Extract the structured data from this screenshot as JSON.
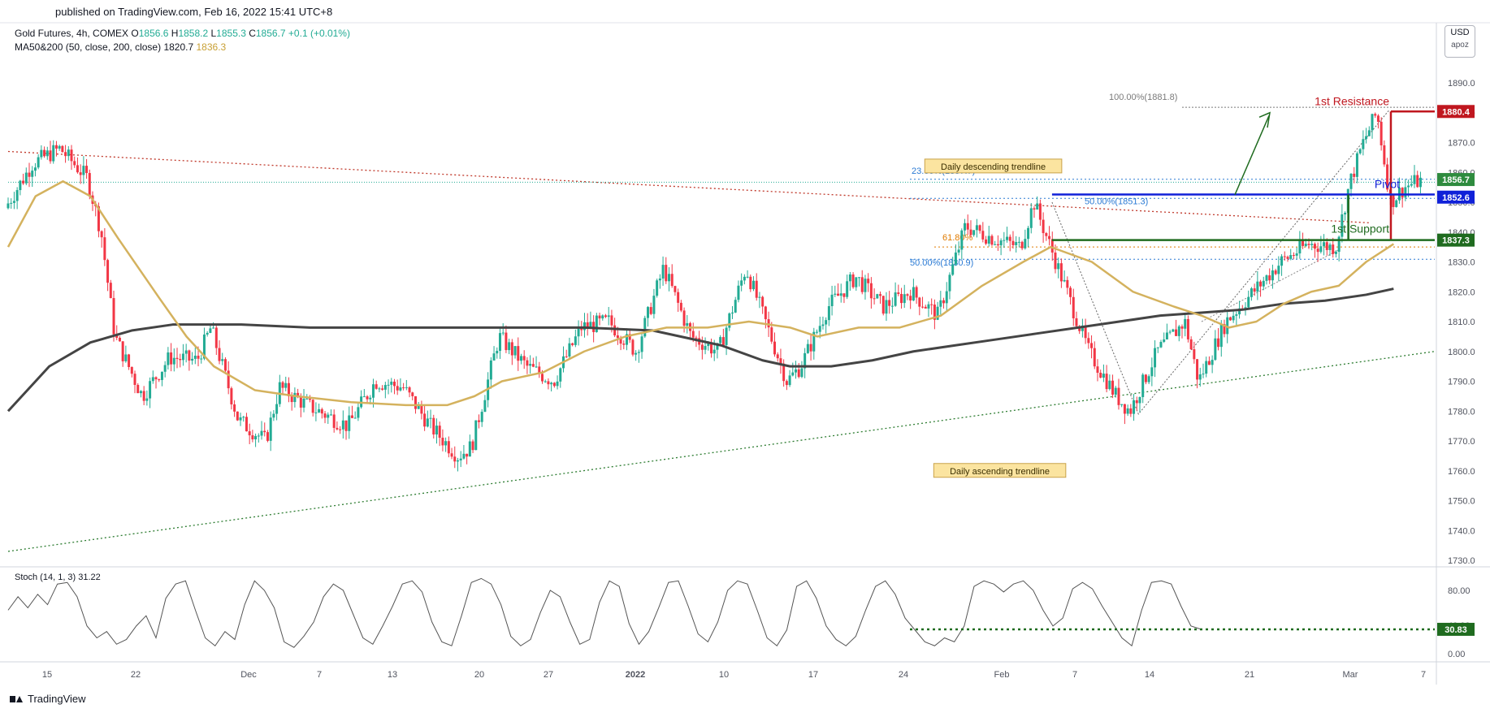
{
  "header": {
    "published": "published on TradingView.com, Feb 16, 2022 15:41 UTC+8",
    "symbol": "Gold Futures, 4h, COMEX",
    "ohlc": [
      {
        "k": "O",
        "v": "1856.6"
      },
      {
        "k": "H",
        "v": "1858.2"
      },
      {
        "k": "L",
        "v": "1855.3"
      },
      {
        "k": "C",
        "v": "1856.7"
      }
    ],
    "change": "+0.1 (+0.01%)",
    "ma_label": "MA50&200 (50, close, 200, close)",
    "ma50_value": "1820.7",
    "ma200_value": "1836.3",
    "currency": "USD",
    "currency_sub": "apoz"
  },
  "footer": {
    "brand": "TradingView"
  },
  "colors": {
    "up": "#22ab94",
    "down": "#f23645",
    "ma50": "#d4b25e",
    "ma200": "#444444",
    "resistance": "#c0171f",
    "pivot": "#1021d8",
    "support": "#1f6b1f",
    "fib": "#2a7ad4",
    "stoch": "#555555",
    "trend_down": "#c0392b",
    "trend_up": "#2e7d32"
  },
  "chart_data": [
    {
      "type": "candlestick",
      "timeframe": "4h",
      "ylim": [
        1725,
        1895
      ],
      "y_ticks": [
        1730,
        1740,
        1750,
        1760,
        1770,
        1780,
        1790,
        1800,
        1810,
        1820,
        1830,
        1840,
        1850,
        1860,
        1870,
        1880,
        1890
      ],
      "x_ticks": [
        "15",
        "22",
        "Dec",
        "7",
        "13",
        "20",
        "27",
        "2022",
        "10",
        "17",
        "24",
        "Feb",
        "7",
        "14",
        "21",
        "Mar",
        "7"
      ],
      "price_path": [
        [
          15,
          1848
        ],
        [
          17,
          1863
        ],
        [
          19,
          1868
        ],
        [
          21,
          1858
        ],
        [
          22,
          1840
        ],
        [
          23,
          1805
        ],
        [
          25,
          1785
        ],
        [
          27,
          1798
        ],
        [
          29,
          1797
        ],
        [
          30,
          1808
        ],
        [
          32,
          1777
        ],
        [
          34,
          1770
        ],
        [
          35,
          1788
        ],
        [
          37,
          1782
        ],
        [
          40,
          1775
        ],
        [
          42,
          1790
        ],
        [
          44,
          1788
        ],
        [
          46,
          1775
        ],
        [
          48,
          1765
        ],
        [
          49,
          1768
        ],
        [
          51,
          1805
        ],
        [
          53,
          1795
        ],
        [
          55,
          1790
        ],
        [
          57,
          1808
        ],
        [
          59,
          1810
        ],
        [
          61,
          1800
        ],
        [
          63,
          1828
        ],
        [
          65,
          1805
        ],
        [
          67,
          1800
        ],
        [
          69,
          1828
        ],
        [
          72,
          1790
        ],
        [
          73,
          1795
        ],
        [
          75,
          1815
        ],
        [
          77,
          1825
        ],
        [
          79,
          1815
        ],
        [
          81,
          1820
        ],
        [
          83,
          1812
        ],
        [
          85,
          1842
        ],
        [
          87,
          1838
        ],
        [
          89,
          1835
        ],
        [
          90,
          1850
        ],
        [
          92,
          1825
        ],
        [
          94,
          1800
        ],
        [
          96,
          1785
        ],
        [
          97,
          1780
        ],
        [
          99,
          1800
        ],
        [
          101,
          1810
        ],
        [
          102,
          1790
        ],
        [
          104,
          1810
        ],
        [
          106,
          1820
        ],
        [
          108,
          1830
        ],
        [
          110,
          1836
        ],
        [
          112,
          1835
        ],
        [
          113,
          1856
        ],
        [
          114,
          1870
        ],
        [
          115,
          1880
        ],
        [
          116,
          1850
        ],
        [
          117,
          1855
        ],
        [
          118,
          1857
        ]
      ],
      "ma50_path": [
        [
          15,
          1835
        ],
        [
          17,
          1852
        ],
        [
          19,
          1857
        ],
        [
          21,
          1852
        ],
        [
          23,
          1838
        ],
        [
          26,
          1818
        ],
        [
          28,
          1805
        ],
        [
          30,
          1795
        ],
        [
          33,
          1787
        ],
        [
          36,
          1785
        ],
        [
          40,
          1783
        ],
        [
          44,
          1782
        ],
        [
          47,
          1782
        ],
        [
          49,
          1785
        ],
        [
          51,
          1790
        ],
        [
          54,
          1793
        ],
        [
          57,
          1800
        ],
        [
          60,
          1805
        ],
        [
          63,
          1808
        ],
        [
          66,
          1808
        ],
        [
          69,
          1810
        ],
        [
          72,
          1808
        ],
        [
          74,
          1805
        ],
        [
          77,
          1808
        ],
        [
          80,
          1808
        ],
        [
          83,
          1812
        ],
        [
          86,
          1822
        ],
        [
          89,
          1830
        ],
        [
          91,
          1835
        ],
        [
          94,
          1830
        ],
        [
          97,
          1820
        ],
        [
          100,
          1815
        ],
        [
          102,
          1812
        ],
        [
          104,
          1808
        ],
        [
          106,
          1810
        ],
        [
          108,
          1816
        ],
        [
          110,
          1820
        ],
        [
          112,
          1822
        ],
        [
          114,
          1830
        ],
        [
          116,
          1836
        ]
      ],
      "ma200_path": [
        [
          15,
          1780
        ],
        [
          18,
          1795
        ],
        [
          21,
          1803
        ],
        [
          24,
          1807
        ],
        [
          27,
          1809
        ],
        [
          32,
          1809
        ],
        [
          37,
          1808
        ],
        [
          42,
          1808
        ],
        [
          47,
          1808
        ],
        [
          52,
          1808
        ],
        [
          57,
          1808
        ],
        [
          62,
          1807
        ],
        [
          67,
          1802
        ],
        [
          70,
          1797
        ],
        [
          72,
          1795
        ],
        [
          75,
          1795
        ],
        [
          78,
          1797
        ],
        [
          81,
          1800
        ],
        [
          84,
          1802
        ],
        [
          87,
          1804
        ],
        [
          90,
          1806
        ],
        [
          93,
          1808
        ],
        [
          96,
          1810
        ],
        [
          99,
          1812
        ],
        [
          102,
          1813
        ],
        [
          105,
          1814
        ],
        [
          108,
          1816
        ],
        [
          111,
          1817
        ],
        [
          114,
          1819
        ],
        [
          116,
          1821
        ]
      ],
      "levels": [
        {
          "name": "1st Resistance",
          "value": 1880.4,
          "tag": "1880.4",
          "color": "#c0171f"
        },
        {
          "name": "Pivot",
          "value": 1852.6,
          "tag": "1852.6",
          "color": "#1021d8"
        },
        {
          "name": "1st Support",
          "value": 1837.3,
          "tag": "1837.3",
          "color": "#1f6b1f"
        }
      ],
      "last_price": {
        "value": 1856.7,
        "tag": "1856.7"
      },
      "fibonacci": [
        {
          "label": "100.00%(1881.8)",
          "value": 1881.8
        },
        {
          "label": "23.60%(1857.7)",
          "value": 1857.7
        },
        {
          "label": "50.00%(1851.3)",
          "value": 1851.3
        },
        {
          "label": "61.80%",
          "value": 1835
        },
        {
          "label": "50.00%(1830.9)",
          "value": 1830.9
        }
      ],
      "annotations": [
        {
          "text": "Daily descending trendline",
          "x": 88,
          "y": 1862
        },
        {
          "text": "Daily ascending trendline",
          "x": 88,
          "y": 1760
        }
      ],
      "trendlines": {
        "descending": {
          "from": [
            15,
            1867
          ],
          "to": [
            119,
            1842
          ]
        },
        "ascending": {
          "from": [
            15,
            1733
          ],
          "to": [
            119,
            1800
          ]
        }
      }
    },
    {
      "type": "line",
      "title": "Stoch (14, 1, 3)",
      "value": "31.22",
      "ylim": [
        0,
        100
      ],
      "y_ticks": [
        "80.00",
        "40.00",
        "0.00"
      ],
      "level": {
        "value": 30.83,
        "tag": "30.83"
      },
      "values": [
        55,
        72,
        58,
        75,
        62,
        88,
        90,
        72,
        35,
        20,
        28,
        12,
        18,
        35,
        48,
        20,
        70,
        88,
        92,
        55,
        20,
        10,
        28,
        18,
        62,
        92,
        80,
        58,
        15,
        8,
        22,
        40,
        72,
        88,
        80,
        50,
        20,
        12,
        35,
        60,
        88,
        92,
        78,
        40,
        15,
        10,
        48,
        90,
        95,
        88,
        62,
        22,
        10,
        18,
        52,
        80,
        72,
        40,
        12,
        18,
        65,
        92,
        85,
        38,
        12,
        28,
        58,
        90,
        92,
        60,
        25,
        15,
        40,
        80,
        92,
        88,
        55,
        20,
        10,
        30,
        85,
        92,
        70,
        35,
        18,
        10,
        22,
        55,
        85,
        92,
        75,
        45,
        30,
        15,
        10,
        20,
        15,
        35,
        85,
        92,
        88,
        78,
        88,
        92,
        80,
        55,
        35,
        45,
        82,
        90,
        82,
        60,
        40,
        20,
        10,
        55,
        90,
        92,
        88,
        60,
        35,
        31
      ]
    }
  ]
}
